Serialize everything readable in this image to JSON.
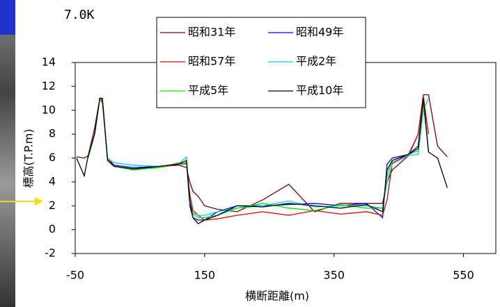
{
  "chart_data": {
    "type": "line",
    "title": "7.0K",
    "x_label": "横断距離(m)",
    "y_label": "標高(T.P.m)",
    "x": [
      -48,
      -36,
      -30,
      -20,
      -12,
      -8,
      0,
      10,
      40,
      80,
      110,
      122,
      127,
      132,
      140,
      150,
      170,
      200,
      240,
      280,
      320,
      360,
      400,
      425,
      432,
      440,
      465,
      480,
      488,
      496,
      510,
      525
    ],
    "series": [
      {
        "name": "昭和31年",
        "color": "#800000",
        "values": [
          6.1,
          6,
          6.2,
          8.5,
          11,
          11,
          5.8,
          5.3,
          5,
          5.3,
          5.4,
          5.2,
          4,
          3.2,
          2.8,
          2,
          1.7,
          1.5,
          2.5,
          3.8,
          1.5,
          2.2,
          2.2,
          2.2,
          4,
          5,
          6.2,
          8,
          11.3,
          11.3,
          7,
          6.1
        ]
      },
      {
        "name": "昭和49年",
        "color": "#0000ff",
        "values": [
          null,
          null,
          6.1,
          8,
          11,
          10.8,
          6,
          5.4,
          5.2,
          5.3,
          5.5,
          5.6,
          2,
          1,
          0.8,
          0.8,
          1.5,
          2,
          2,
          2.1,
          2.2,
          2,
          2.2,
          1,
          5.5,
          6,
          6.3,
          7,
          11,
          6.5,
          null,
          null
        ]
      },
      {
        "name": "昭和57年",
        "color": "#e00000",
        "values": [
          null,
          null,
          6,
          8,
          11,
          10.6,
          6,
          5.3,
          5.1,
          5.2,
          5.5,
          5.5,
          3,
          1.6,
          1.2,
          0.8,
          0.9,
          1.2,
          1.5,
          1.2,
          1.6,
          1.3,
          1.5,
          1.2,
          2.5,
          5.6,
          6.3,
          8,
          11.2,
          8,
          null,
          null
        ]
      },
      {
        "name": "平成2年",
        "color": "#00ccff",
        "values": [
          null,
          null,
          6,
          8,
          11,
          10.8,
          6,
          5.6,
          5.4,
          5.3,
          5.5,
          6.1,
          2.2,
          1.4,
          1.2,
          1.2,
          1.5,
          1.8,
          2,
          2.4,
          1.9,
          2,
          2,
          1.8,
          4,
          5.5,
          6.2,
          6.3,
          10,
          11,
          null,
          null
        ]
      },
      {
        "name": "平成5年",
        "color": "#00ee00",
        "values": [
          null,
          null,
          6,
          8,
          11,
          10.8,
          5.8,
          5.3,
          5,
          5.2,
          5.6,
          5.5,
          2.3,
          1.3,
          1,
          1,
          1.2,
          1.8,
          2.2,
          1.8,
          1.6,
          2.1,
          1.8,
          1.8,
          4.5,
          5.8,
          6.3,
          6.6,
          10.5,
          6.6,
          null,
          null
        ]
      },
      {
        "name": "平成10年",
        "color": "#000000",
        "values": [
          6,
          4.5,
          6.2,
          8,
          11,
          11,
          5.8,
          5.3,
          5.1,
          5.3,
          5.5,
          5.8,
          2.5,
          1,
          0.5,
          0.8,
          1.2,
          2,
          1.9,
          2.2,
          2,
          1.8,
          2.1,
          1.5,
          5,
          5.8,
          6.3,
          6.8,
          11,
          6.5,
          6,
          3.5
        ]
      }
    ],
    "xlim": [
      -50,
      600
    ],
    "xticks": [
      -50,
      150,
      350,
      550
    ],
    "ylim": [
      -2,
      14
    ],
    "yticks": [
      -2,
      0,
      2,
      4,
      6,
      8,
      10,
      12,
      14
    ]
  }
}
